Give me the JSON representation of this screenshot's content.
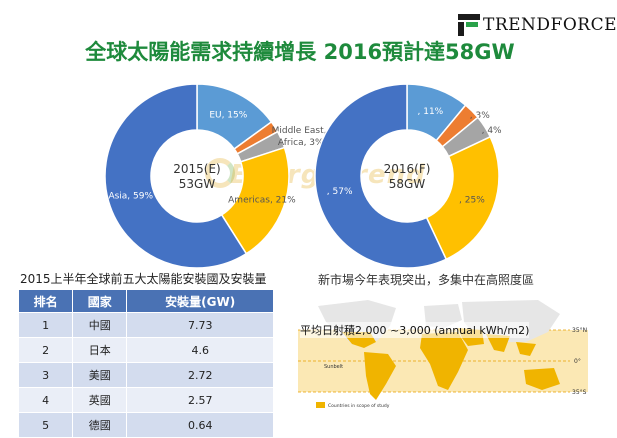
{
  "logo": {
    "text": "TRENDFORCE"
  },
  "title": "全球太陽能需求持續增長 2016預計達58GW",
  "watermark": "EnergyTrend",
  "chart_data": [
    {
      "type": "pie",
      "center_label": [
        "2015(E)",
        "53GW"
      ],
      "series": [
        {
          "name": "EU",
          "value": 15,
          "label": "EU, 15%",
          "color": "#5b9bd5"
        },
        {
          "name": "Middle East",
          "value": 2,
          "label": "Middle East, 2%",
          "color": "#ed7d31"
        },
        {
          "name": "Africa",
          "value": 3,
          "label": "Africa, 3%",
          "color": "#a5a5a5"
        },
        {
          "name": "Americas",
          "value": 21,
          "label": "Americas, 21%",
          "color": "#ffc000"
        },
        {
          "name": "Asia",
          "value": 59,
          "label": "Asia, 59%",
          "color": "#4472c4"
        }
      ]
    },
    {
      "type": "pie",
      "center_label": [
        "2016(F)",
        "58GW"
      ],
      "series": [
        {
          "value": 11,
          "label": ", 11%",
          "color": "#5b9bd5"
        },
        {
          "value": 3,
          "label": ", 3%",
          "color": "#ed7d31"
        },
        {
          "value": 4,
          "label": ", 4%",
          "color": "#a5a5a5"
        },
        {
          "value": 25,
          "label": ", 25%",
          "color": "#ffc000"
        },
        {
          "value": 57,
          "label": ", 57%",
          "color": "#4472c4"
        }
      ]
    },
    {
      "type": "table",
      "title": "2015上半年全球前五大太陽能安裝國及安裝量",
      "columns": [
        "排名",
        "國家",
        "安裝量(GW)"
      ],
      "rows": [
        [
          "1",
          "中國",
          "7.73"
        ],
        [
          "2",
          "日本",
          "4.6"
        ],
        [
          "3",
          "美國",
          "2.72"
        ],
        [
          "4",
          "英國",
          "2.57"
        ],
        [
          "5",
          "德國",
          "0.64"
        ]
      ]
    }
  ],
  "map": {
    "title": "新市場今年表現突出，多集中在高照度區",
    "caption": "平均日射積2,000 ~3,000 (annual kWh/m2)",
    "lat_labels": [
      "35°N",
      "0°",
      "35°S"
    ],
    "sunbelt_label": "Sunbelt",
    "legend_label": "Countries in scope of study",
    "colors": {
      "land": "#e6e6e6",
      "highlight": "#f0b400",
      "band": "#fbe8b4",
      "line": "#e8a000"
    }
  }
}
